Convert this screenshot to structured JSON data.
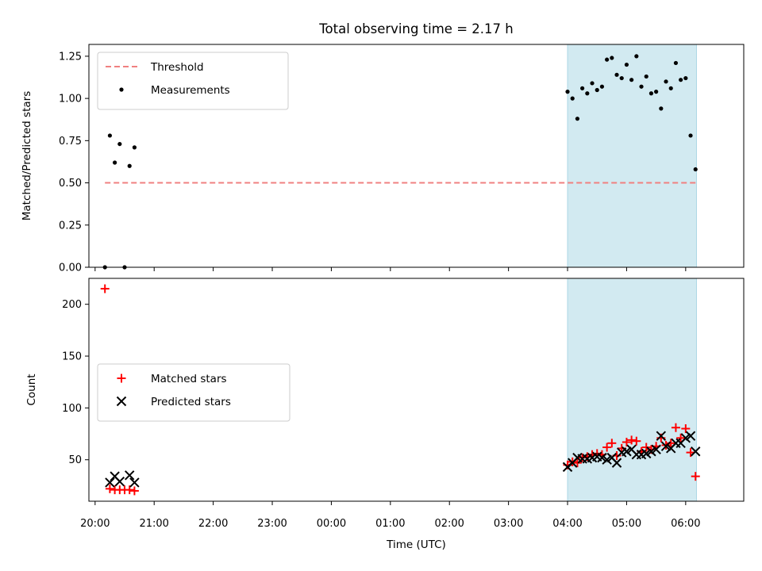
{
  "chart_data": {
    "type": "scatter",
    "title": "Total observing time = 2.17 h",
    "x_tick_labels": [
      "20:00",
      "21:00",
      "22:00",
      "23:00",
      "00:00",
      "01:00",
      "02:00",
      "03:00",
      "04:00",
      "05:00",
      "06:00"
    ],
    "xlabel": "Time (UTC)",
    "highlight_span": [
      "04:00",
      "06:11"
    ],
    "highlight_color": "#add8e6",
    "panels": [
      {
        "ylabel": "Matched/Predicted stars",
        "ylim": [
          0,
          1.32
        ],
        "y_ticks": [
          "0.00",
          "0.25",
          "0.50",
          "0.75",
          "1.00",
          "1.25"
        ],
        "legend_position": "upper left",
        "threshold": {
          "name": "Threshold",
          "value": 0.5,
          "x_range": [
            "20:10",
            "06:11"
          ],
          "color": "#f08080"
        },
        "series": [
          {
            "name": "Measurements",
            "marker": "dot",
            "color": "#000000",
            "points": [
              [
                "20:10",
                0.0
              ],
              [
                "20:15",
                0.78
              ],
              [
                "20:20",
                0.62
              ],
              [
                "20:25",
                0.73
              ],
              [
                "20:30",
                0.0
              ],
              [
                "20:35",
                0.6
              ],
              [
                "20:40",
                0.71
              ],
              [
                "04:00",
                1.04
              ],
              [
                "04:05",
                1.0
              ],
              [
                "04:10",
                0.88
              ],
              [
                "04:15",
                1.06
              ],
              [
                "04:20",
                1.03
              ],
              [
                "04:25",
                1.09
              ],
              [
                "04:30",
                1.05
              ],
              [
                "04:35",
                1.07
              ],
              [
                "04:40",
                1.23
              ],
              [
                "04:45",
                1.24
              ],
              [
                "04:50",
                1.14
              ],
              [
                "04:55",
                1.12
              ],
              [
                "05:00",
                1.2
              ],
              [
                "05:05",
                1.11
              ],
              [
                "05:10",
                1.25
              ],
              [
                "05:15",
                1.07
              ],
              [
                "05:20",
                1.13
              ],
              [
                "05:25",
                1.03
              ],
              [
                "05:30",
                1.04
              ],
              [
                "05:35",
                0.94
              ],
              [
                "05:40",
                1.1
              ],
              [
                "05:45",
                1.06
              ],
              [
                "05:50",
                1.21
              ],
              [
                "05:55",
                1.11
              ],
              [
                "06:00",
                1.12
              ],
              [
                "06:05",
                0.78
              ],
              [
                "06:10",
                0.58
              ]
            ]
          }
        ]
      },
      {
        "ylabel": "Count",
        "ylim": [
          10,
          225
        ],
        "y_ticks": [
          "50",
          "100",
          "150",
          "200"
        ],
        "legend_position": "center left",
        "series": [
          {
            "name": "Matched stars",
            "marker": "plus",
            "color": "#ff0000",
            "points": [
              [
                "20:10",
                215
              ],
              [
                "20:15",
                22
              ],
              [
                "20:20",
                21
              ],
              [
                "20:25",
                21
              ],
              [
                "20:30",
                21
              ],
              [
                "20:35",
                21
              ],
              [
                "20:40",
                20
              ],
              [
                "04:00",
                45
              ],
              [
                "04:05",
                48
              ],
              [
                "04:10",
                47
              ],
              [
                "04:15",
                52
              ],
              [
                "04:20",
                53
              ],
              [
                "04:25",
                55
              ],
              [
                "04:30",
                56
              ],
              [
                "04:35",
                55
              ],
              [
                "04:40",
                62
              ],
              [
                "04:45",
                66
              ],
              [
                "04:50",
                54
              ],
              [
                "04:55",
                61
              ],
              [
                "05:00",
                67
              ],
              [
                "05:05",
                69
              ],
              [
                "05:10",
                68
              ],
              [
                "05:15",
                58
              ],
              [
                "05:20",
                62
              ],
              [
                "05:25",
                60
              ],
              [
                "05:30",
                63
              ],
              [
                "05:35",
                71
              ],
              [
                "05:40",
                64
              ],
              [
                "05:45",
                66
              ],
              [
                "05:50",
                81
              ],
              [
                "05:55",
                71
              ],
              [
                "06:00",
                80
              ],
              [
                "06:05",
                57
              ],
              [
                "06:10",
                34
              ]
            ]
          },
          {
            "name": "Predicted stars",
            "marker": "x",
            "color": "#000000",
            "points": [
              [
                "20:15",
                28
              ],
              [
                "20:20",
                34
              ],
              [
                "20:25",
                29
              ],
              [
                "20:35",
                35
              ],
              [
                "20:40",
                28
              ],
              [
                "04:00",
                43
              ],
              [
                "04:05",
                47
              ],
              [
                "04:10",
                52
              ],
              [
                "04:15",
                51
              ],
              [
                "04:20",
                51
              ],
              [
                "04:25",
                52
              ],
              [
                "04:30",
                53
              ],
              [
                "04:35",
                52
              ],
              [
                "04:40",
                50
              ],
              [
                "04:45",
                52
              ],
              [
                "04:50",
                47
              ],
              [
                "04:55",
                57
              ],
              [
                "05:00",
                58
              ],
              [
                "05:05",
                60
              ],
              [
                "05:10",
                55
              ],
              [
                "05:15",
                55
              ],
              [
                "05:20",
                56
              ],
              [
                "05:25",
                58
              ],
              [
                "05:30",
                60
              ],
              [
                "05:35",
                73
              ],
              [
                "05:40",
                63
              ],
              [
                "05:45",
                61
              ],
              [
                "05:50",
                66
              ],
              [
                "05:55",
                66
              ],
              [
                "06:00",
                71
              ],
              [
                "06:05",
                73
              ],
              [
                "06:10",
                58
              ]
            ]
          }
        ]
      }
    ]
  }
}
